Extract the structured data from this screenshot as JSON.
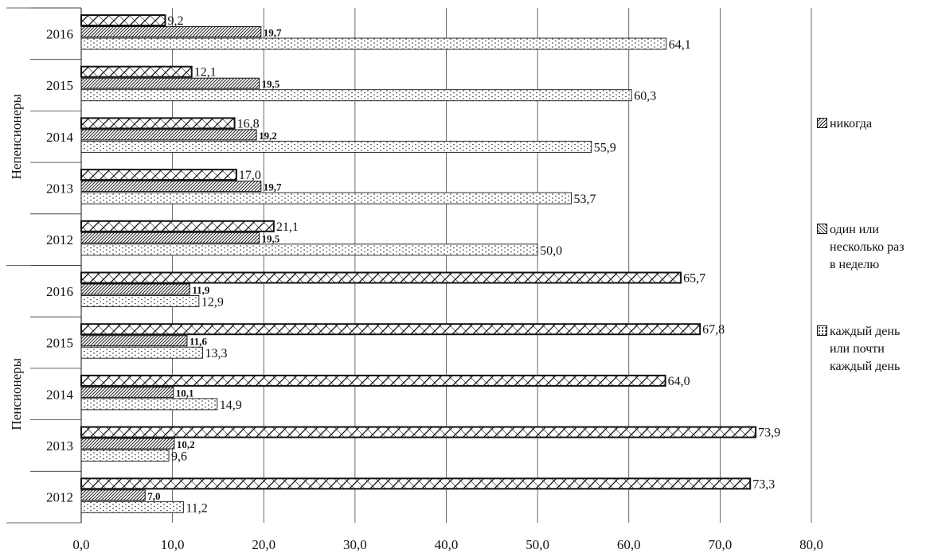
{
  "chart_data": {
    "type": "bar",
    "orientation": "horizontal",
    "xlim": [
      0,
      80
    ],
    "xticks": [
      "0,0",
      "10,0",
      "20,0",
      "30,0",
      "40,0",
      "50,0",
      "60,0",
      "70,0",
      "80,0"
    ],
    "grid": "vertical",
    "legend_position": "right",
    "groups": [
      {
        "name": "Непенсионеры",
        "years": [
          "2016",
          "2015",
          "2014",
          "2013",
          "2012"
        ],
        "series": [
          {
            "name": "никогда",
            "values": [
              9.2,
              12.1,
              16.8,
              17.0,
              21.1
            ],
            "labels": [
              "9,2",
              "12,1",
              "16,8",
              "17,0",
              "21,1"
            ]
          },
          {
            "name": "один или несколько раз в неделю",
            "values": [
              19.7,
              19.5,
              19.2,
              19.7,
              19.5
            ],
            "labels": [
              "19,7",
              "19,5",
              "19,2",
              "19,7",
              "19,5"
            ]
          },
          {
            "name": "каждый день или почти каждый день",
            "values": [
              64.1,
              60.3,
              55.9,
              53.7,
              50.0
            ],
            "labels": [
              "64,1",
              "60,3",
              "55,9",
              "53,7",
              "50,0"
            ]
          }
        ]
      },
      {
        "name": "Пенсионеры",
        "years": [
          "2016",
          "2015",
          "2014",
          "2013",
          "2012"
        ],
        "series": [
          {
            "name": "никогда",
            "values": [
              65.7,
              67.8,
              64.0,
              73.9,
              73.3
            ],
            "labels": [
              "65,7",
              "67,8",
              "64,0",
              "73,9",
              "73,3"
            ]
          },
          {
            "name": "один или несколько раз в неделю",
            "values": [
              11.9,
              11.6,
              10.1,
              10.2,
              7.0
            ],
            "labels": [
              "11,9",
              "11,6",
              "10,1",
              "10,2",
              "7,0"
            ]
          },
          {
            "name": "каждый день или почти каждый день",
            "values": [
              12.9,
              13.3,
              14.9,
              9.6,
              11.2
            ],
            "labels": [
              "12,9",
              "13,3",
              "14,9",
              "9,6",
              "11,2"
            ]
          }
        ]
      }
    ]
  },
  "legend": [
    {
      "lines": [
        "никогда"
      ],
      "pattern": "never"
    },
    {
      "lines": [
        "один или",
        "несколько раз",
        "в неделю"
      ],
      "pattern": "weekly"
    },
    {
      "lines": [
        "каждый день",
        "или почти",
        "каждый день"
      ],
      "pattern": "daily"
    }
  ]
}
